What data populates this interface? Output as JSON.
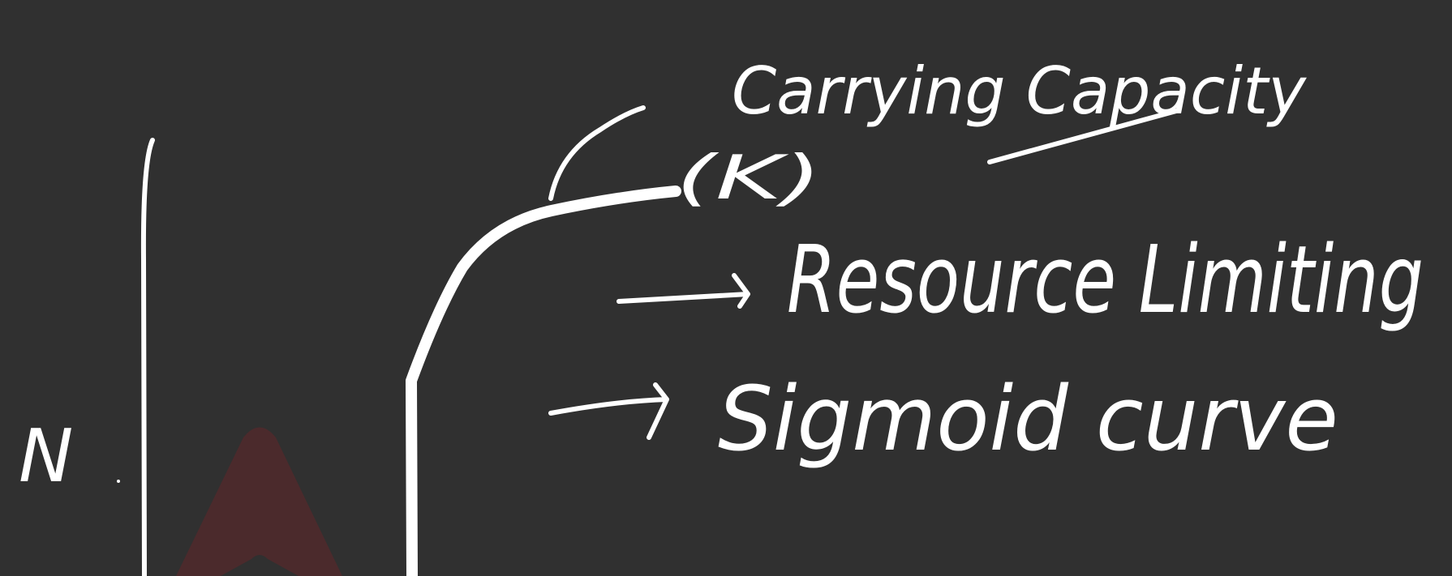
{
  "board": {
    "annotations": {
      "carrying_capacity": "Carrying Capacity",
      "k_symbol": "(K)",
      "resource_limiting": "Resource Limiting",
      "sigmoid_curve": "Sigmoid curve"
    },
    "axis_label": "N"
  }
}
